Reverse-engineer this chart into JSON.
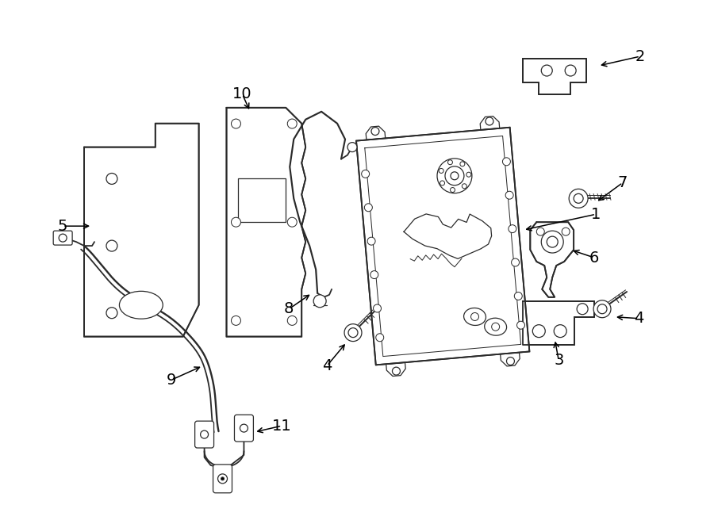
{
  "bg_color": "#ffffff",
  "line_color": "#2a2a2a",
  "lw_main": 1.3,
  "lw_thin": 0.9,
  "fig_width": 9.0,
  "fig_height": 6.61,
  "label_fs": 13,
  "arrow_lw": 1.1,
  "arrow_ms": 10
}
